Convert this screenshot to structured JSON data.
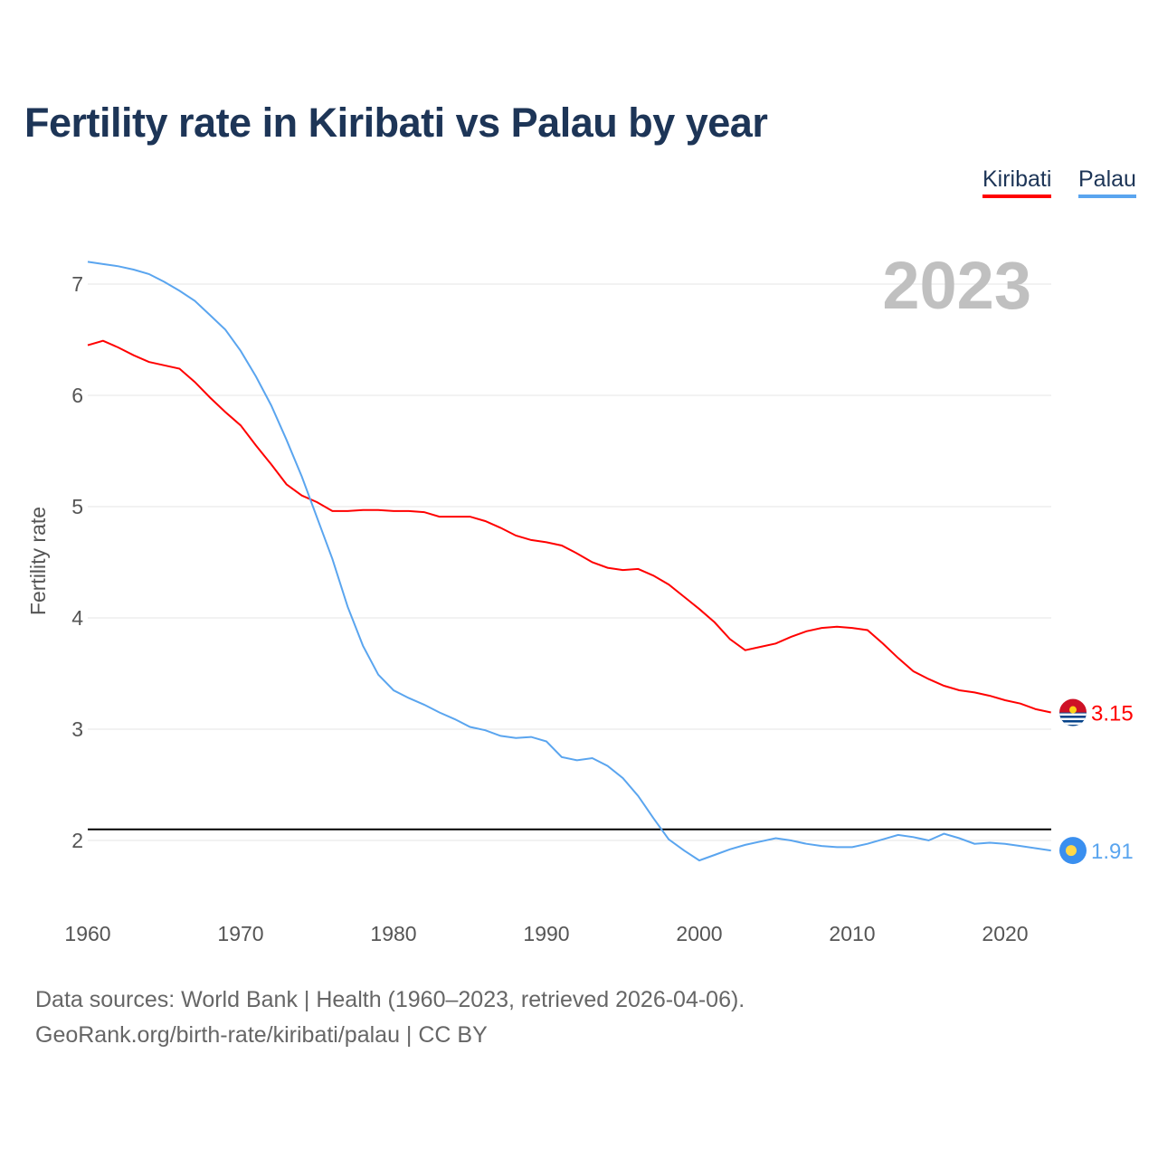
{
  "colors": {
    "kiribati": "#ff0000",
    "palau": "#5aa5ef",
    "reference": "#000000",
    "grid": "#e5e5e5",
    "year": "#c0c0c0"
  },
  "source_line1": "Data sources: World Bank | Health (1960–2023, retrieved 2026-04-06).",
  "source_line2": "GeoRank.org/birth-rate/kiribati/palau | CC BY",
  "chart_data": {
    "type": "line",
    "title": "Fertility rate in Kiribati vs Palau by year",
    "ylabel": "Fertility rate",
    "xlabel": "",
    "year_label": "2023",
    "xlim": [
      1960,
      2023
    ],
    "ylim": [
      1.5,
      7.3
    ],
    "xticks": [
      "1960",
      "1970",
      "1980",
      "1990",
      "2000",
      "2010",
      "2020"
    ],
    "yticks": [
      "2",
      "3",
      "4",
      "5",
      "6",
      "7"
    ],
    "grid": true,
    "legend_position": "top-right",
    "reference_line": 2.1,
    "x": [
      1960,
      1961,
      1962,
      1963,
      1964,
      1965,
      1966,
      1967,
      1968,
      1969,
      1970,
      1971,
      1972,
      1973,
      1974,
      1975,
      1976,
      1977,
      1978,
      1979,
      1980,
      1981,
      1982,
      1983,
      1984,
      1985,
      1986,
      1987,
      1988,
      1989,
      1990,
      1991,
      1992,
      1993,
      1994,
      1995,
      1996,
      1997,
      1998,
      1999,
      2000,
      2001,
      2002,
      2003,
      2004,
      2005,
      2006,
      2007,
      2008,
      2009,
      2010,
      2011,
      2012,
      2013,
      2014,
      2015,
      2016,
      2017,
      2018,
      2019,
      2020,
      2021,
      2022,
      2023
    ],
    "series": [
      {
        "name": "Kiribati",
        "end_label": "3.15",
        "flag": "kiribati-flag",
        "values": [
          6.45,
          6.49,
          6.43,
          6.36,
          6.3,
          6.27,
          6.24,
          6.12,
          5.98,
          5.85,
          5.73,
          5.55,
          5.38,
          5.2,
          5.1,
          5.04,
          4.96,
          4.96,
          4.97,
          4.97,
          4.96,
          4.96,
          4.95,
          4.91,
          4.91,
          4.91,
          4.87,
          4.81,
          4.74,
          4.7,
          4.68,
          4.65,
          4.58,
          4.5,
          4.45,
          4.43,
          4.44,
          4.38,
          4.3,
          4.19,
          4.08,
          3.96,
          3.81,
          3.71,
          3.74,
          3.77,
          3.83,
          3.88,
          3.91,
          3.92,
          3.91,
          3.89,
          3.77,
          3.64,
          3.52,
          3.45,
          3.39,
          3.35,
          3.33,
          3.3,
          3.26,
          3.23,
          3.18,
          3.15
        ]
      },
      {
        "name": "Palau",
        "end_label": "1.91",
        "flag": "palau-flag",
        "values": [
          7.2,
          7.18,
          7.16,
          7.13,
          7.09,
          7.02,
          6.94,
          6.85,
          6.72,
          6.59,
          6.4,
          6.17,
          5.91,
          5.6,
          5.27,
          4.9,
          4.53,
          4.1,
          3.75,
          3.49,
          3.35,
          3.28,
          3.22,
          3.15,
          3.09,
          3.02,
          2.99,
          2.94,
          2.92,
          2.93,
          2.89,
          2.75,
          2.72,
          2.74,
          2.67,
          2.56,
          2.4,
          2.2,
          2.01,
          1.91,
          1.82,
          1.87,
          1.92,
          1.96,
          1.99,
          2.02,
          2.0,
          1.97,
          1.95,
          1.94,
          1.94,
          1.97,
          2.01,
          2.05,
          2.03,
          2.0,
          2.06,
          2.02,
          1.97,
          1.98,
          1.97,
          1.95,
          1.93,
          1.91
        ]
      }
    ]
  }
}
